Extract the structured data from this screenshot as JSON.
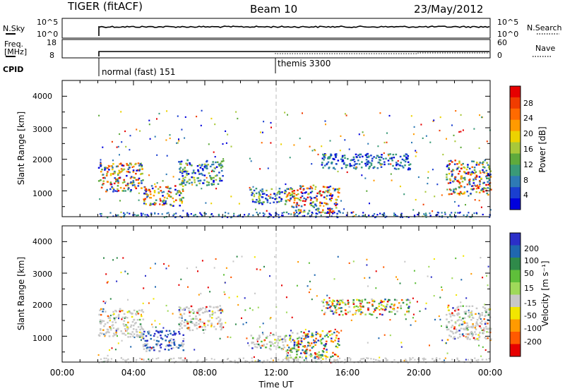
{
  "header": {
    "left": "TIGER (fitACF)",
    "center": "Beam 10",
    "right": "23/May/2012"
  },
  "status_panels": {
    "nsky_label": "N.Sky",
    "nsky_ticks": [
      "10^5",
      "10^0"
    ],
    "nsearch_label": "N.Search",
    "nsearch_ticks": [
      "10^5",
      "10^0"
    ],
    "freq_label_line1": "Freq.",
    "freq_label_line2": "[MHz]",
    "freq_ticks": [
      "18",
      "8"
    ],
    "nave_label": "Nave",
    "nave_ticks": [
      "60",
      "0"
    ],
    "cpid_label": "CPID",
    "cpid_segments": [
      {
        "label": "normal (fast) 151",
        "start_hour": 2.0
      },
      {
        "label": "themis 3300",
        "start_hour": 12.0
      }
    ]
  },
  "chart_data": [
    {
      "type": "heatmap",
      "panel": "power",
      "ylabel": "Slant Range [km]",
      "xlabel": "",
      "xlim_hours": [
        0,
        24
      ],
      "ylim_km": [
        180,
        4500
      ],
      "yticks": [
        "1000",
        "2000",
        "3000",
        "4000"
      ],
      "colorbar": {
        "title": "Power [dB]",
        "ticks": [
          "4",
          "8",
          "12",
          "16",
          "20",
          "24",
          "28"
        ],
        "colors": [
          "#0000dd",
          "#1a3fd0",
          "#2e7ab5",
          "#3a9a78",
          "#5faa3c",
          "#a8c83a",
          "#ecd200",
          "#ff9a00",
          "#ff6a00",
          "#f03c00",
          "#e60000"
        ]
      },
      "echo_regions": [
        {
          "t_start": 2.0,
          "t_end": 4.5,
          "r_low": 1000,
          "r_high": 1900,
          "level": "strong"
        },
        {
          "t_start": 4.5,
          "t_end": 6.8,
          "r_low": 550,
          "r_high": 1200,
          "level": "strong"
        },
        {
          "t_start": 6.5,
          "t_end": 9.0,
          "r_low": 1200,
          "r_high": 2000,
          "level": "moderate"
        },
        {
          "t_start": 10.5,
          "t_end": 12.5,
          "r_low": 600,
          "r_high": 1100,
          "level": "moderate"
        },
        {
          "t_start": 12.5,
          "t_end": 15.5,
          "r_low": 300,
          "r_high": 1200,
          "level": "strong"
        },
        {
          "t_start": 14.5,
          "t_end": 19.5,
          "r_low": 1700,
          "r_high": 2200,
          "level": "weak"
        },
        {
          "t_start": 21.5,
          "t_end": 24.0,
          "r_low": 900,
          "r_high": 2000,
          "level": "strong"
        }
      ]
    },
    {
      "type": "heatmap",
      "panel": "velocity",
      "ylabel": "Slant Range [km]",
      "xlabel": "Time UT",
      "xlim_hours": [
        0,
        24
      ],
      "ylim_km": [
        180,
        4500
      ],
      "xticks": [
        "00:00",
        "04:00",
        "08:00",
        "12:00",
        "16:00",
        "20:00",
        "00:00"
      ],
      "yticks": [
        "1000",
        "2000",
        "3000",
        "4000"
      ],
      "colorbar": {
        "title": "Velocity [m s⁻¹]",
        "ticks": [
          "200",
          "100",
          "50",
          "15",
          "-15",
          "-50",
          "-100",
          "-200"
        ],
        "colors": [
          "#2b2fc8",
          "#1f67b0",
          "#2f8a4a",
          "#5fbf3a",
          "#9fd95a",
          "#c8c8c8",
          "#f2e600",
          "#ff9a00",
          "#ff5a00",
          "#e60000"
        ]
      },
      "echo_regions": [
        {
          "t_start": 2.0,
          "t_end": 4.5,
          "r_low": 1000,
          "r_high": 1900,
          "level": "ground"
        },
        {
          "t_start": 4.5,
          "t_end": 6.8,
          "r_low": 550,
          "r_high": 1200,
          "level": "toward"
        },
        {
          "t_start": 6.5,
          "t_end": 9.0,
          "r_low": 1200,
          "r_high": 2000,
          "level": "ground"
        },
        {
          "t_start": 10.5,
          "t_end": 12.5,
          "r_low": 600,
          "r_high": 1100,
          "level": "ground"
        },
        {
          "t_start": 12.5,
          "t_end": 15.5,
          "r_low": 300,
          "r_high": 1200,
          "level": "mixed"
        },
        {
          "t_start": 14.5,
          "t_end": 19.5,
          "r_low": 1700,
          "r_high": 2200,
          "level": "mixed"
        },
        {
          "t_start": 21.5,
          "t_end": 24.0,
          "r_low": 900,
          "r_high": 2000,
          "level": "ground"
        }
      ]
    }
  ]
}
